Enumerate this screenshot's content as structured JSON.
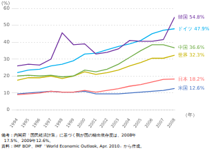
{
  "chart_data": {
    "type": "line",
    "x": [
      1994,
      1995,
      1996,
      1997,
      1998,
      1999,
      2000,
      2001,
      2002,
      2003,
      2004,
      2005,
      2006,
      2007,
      2008
    ],
    "xlim": [
      1994,
      2008
    ],
    "xticks": [
      1994,
      1995,
      1996,
      1997,
      1998,
      1999,
      2000,
      2001,
      2002,
      2003,
      2004,
      2005,
      2006,
      2007,
      2008
    ],
    "series": [
      {
        "name": "韓国",
        "color": "#7030a0",
        "values": [
          26.0,
          27.0,
          26.5,
          30.0,
          45.5,
          38.5,
          39.0,
          33.0,
          34.0,
          36.0,
          41.0,
          40.5,
          40.5,
          41.5,
          54.8
        ]
      },
      {
        "name": "ドイツ",
        "color": "#00b0f0",
        "values": [
          22.0,
          23.5,
          24.0,
          26.0,
          27.0,
          29.0,
          33.0,
          33.5,
          35.5,
          37.5,
          39.0,
          41.0,
          45.0,
          47.0,
          47.9
        ]
      },
      {
        "name": "中国",
        "color": "#70ad47",
        "values": [
          20.0,
          20.5,
          20.0,
          20.5,
          19.5,
          20.0,
          23.5,
          22.5,
          24.0,
          27.0,
          31.0,
          35.0,
          38.5,
          38.5,
          36.6
        ]
      },
      {
        "name": "世界",
        "color": "#c8b400",
        "values": [
          17.5,
          19.0,
          19.0,
          20.0,
          18.5,
          20.0,
          22.5,
          21.0,
          22.0,
          23.5,
          26.0,
          28.0,
          30.5,
          30.5,
          32.3
        ]
      },
      {
        "name": "日本",
        "color": "#ff6666",
        "values": [
          9.0,
          9.5,
          10.0,
          11.0,
          10.5,
          10.5,
          11.5,
          10.5,
          11.5,
          12.5,
          14.0,
          15.0,
          16.5,
          18.0,
          18.2
        ]
      },
      {
        "name": "米国",
        "color": "#4472c4",
        "values": [
          9.5,
          10.0,
          10.5,
          11.0,
          10.5,
          10.5,
          11.0,
          9.5,
          9.5,
          9.5,
          10.0,
          10.5,
          11.0,
          11.5,
          12.6
        ]
      }
    ],
    "annotations": [
      {
        "text": "韓国 54.8%",
        "y": 54.8,
        "color": "#7030a0"
      },
      {
        "text": "ドイツ 47.9%",
        "y": 47.9,
        "color": "#00b0f0"
      },
      {
        "text": "中国 36.6%",
        "y": 36.6,
        "color": "#70ad47"
      },
      {
        "text": "世界 32.3%",
        "y": 32.3,
        "color": "#c8b400"
      },
      {
        "text": "日本 18.2%",
        "y": 18.2,
        "color": "#ff6666"
      },
      {
        "text": "米国 12.6%",
        "y": 12.6,
        "color": "#4472c4"
      }
    ],
    "ylim": [
      0,
      60
    ],
    "yticks": [
      0,
      10,
      20,
      30,
      40,
      50,
      60
    ],
    "ylabel": "(%)",
    "xlabel": "（年）",
    "grid": true,
    "footnotes": [
      "備考：内閣府「国民経済計算」に基づく我が国の輸出依存度は、2008年",
      "  17.5%、2009年12.6%。",
      "資料：IMF BOP、IMF『World Economic Outlook, Apr. 2010』から作成。"
    ]
  }
}
